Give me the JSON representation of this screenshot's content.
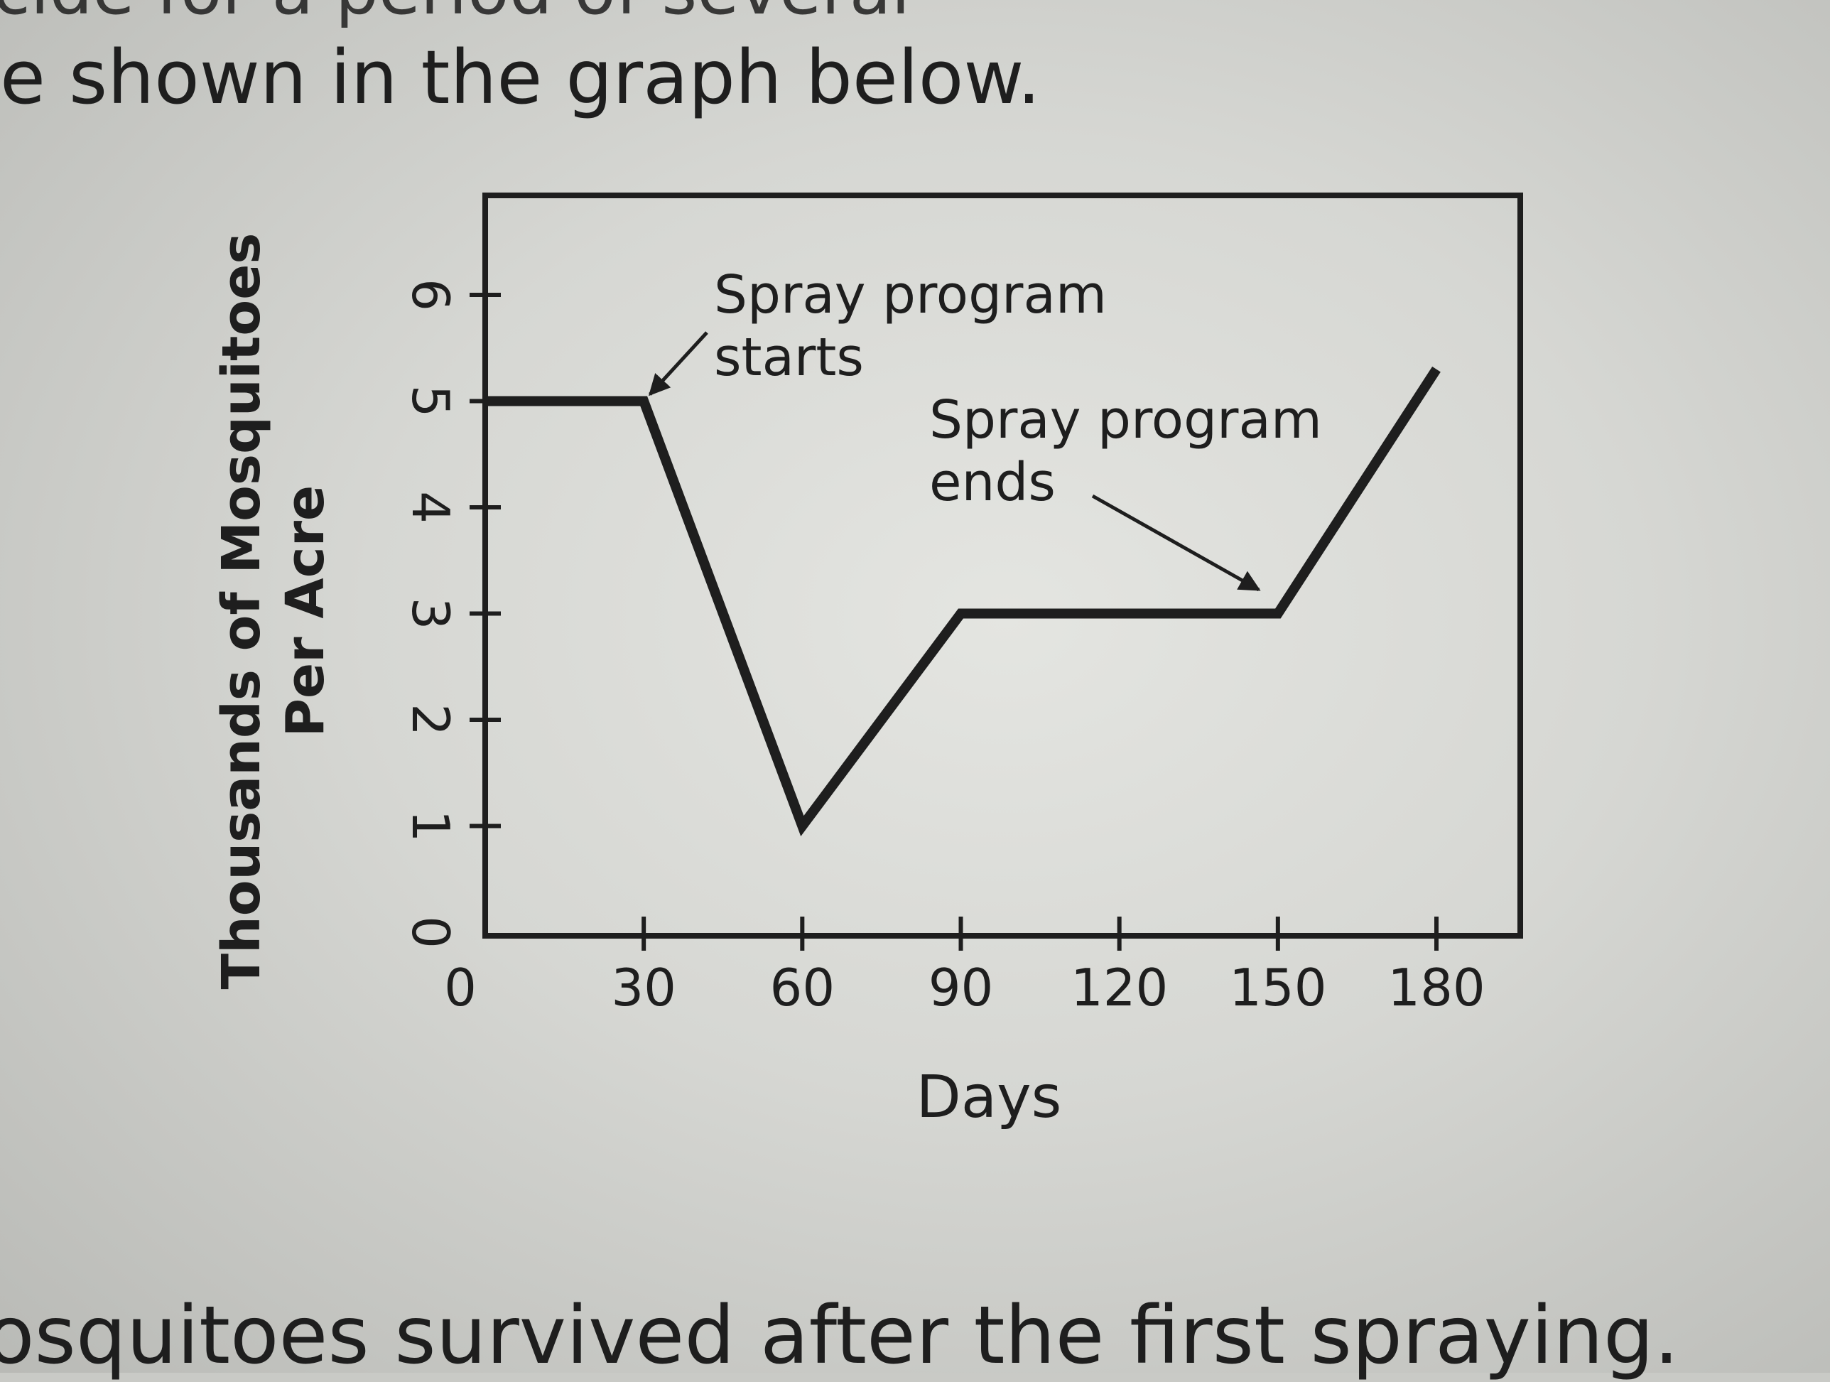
{
  "text": {
    "top_cut": "cide for a period of several",
    "intro": "e shown in the graph below.",
    "question": "osquitoes survived after the first spraying."
  },
  "chart_data": {
    "type": "line",
    "title": "",
    "xlabel": "Days",
    "ylabel_line1": "Thousands of Mosquitoes",
    "ylabel_line2": "Per Acre",
    "xlim": [
      0,
      180
    ],
    "ylim": [
      0,
      6
    ],
    "x_ticks": [
      0,
      30,
      60,
      90,
      120,
      150,
      180
    ],
    "x_tick_labels": [
      "0",
      "30",
      "60",
      "90",
      "120",
      "150",
      "180"
    ],
    "y_ticks": [
      0,
      1,
      2,
      3,
      4,
      5,
      6
    ],
    "y_tick_labels": [
      "0",
      "1",
      "2",
      "3",
      "4",
      "5",
      "6"
    ],
    "grid": false,
    "series": [
      {
        "x": [
          0,
          30,
          60,
          90,
          150,
          180
        ],
        "y": [
          5,
          5,
          1,
          3,
          3,
          5.3
        ]
      }
    ],
    "annotations": [
      {
        "lines": [
          "Spray program",
          "starts"
        ],
        "point_x": 30,
        "point_y": 5
      },
      {
        "lines": [
          "Spray program",
          "ends"
        ],
        "point_x": 150,
        "point_y": 3
      }
    ],
    "colors": {
      "line": "#1e1e1e",
      "ink": "#1e1e1e"
    }
  }
}
